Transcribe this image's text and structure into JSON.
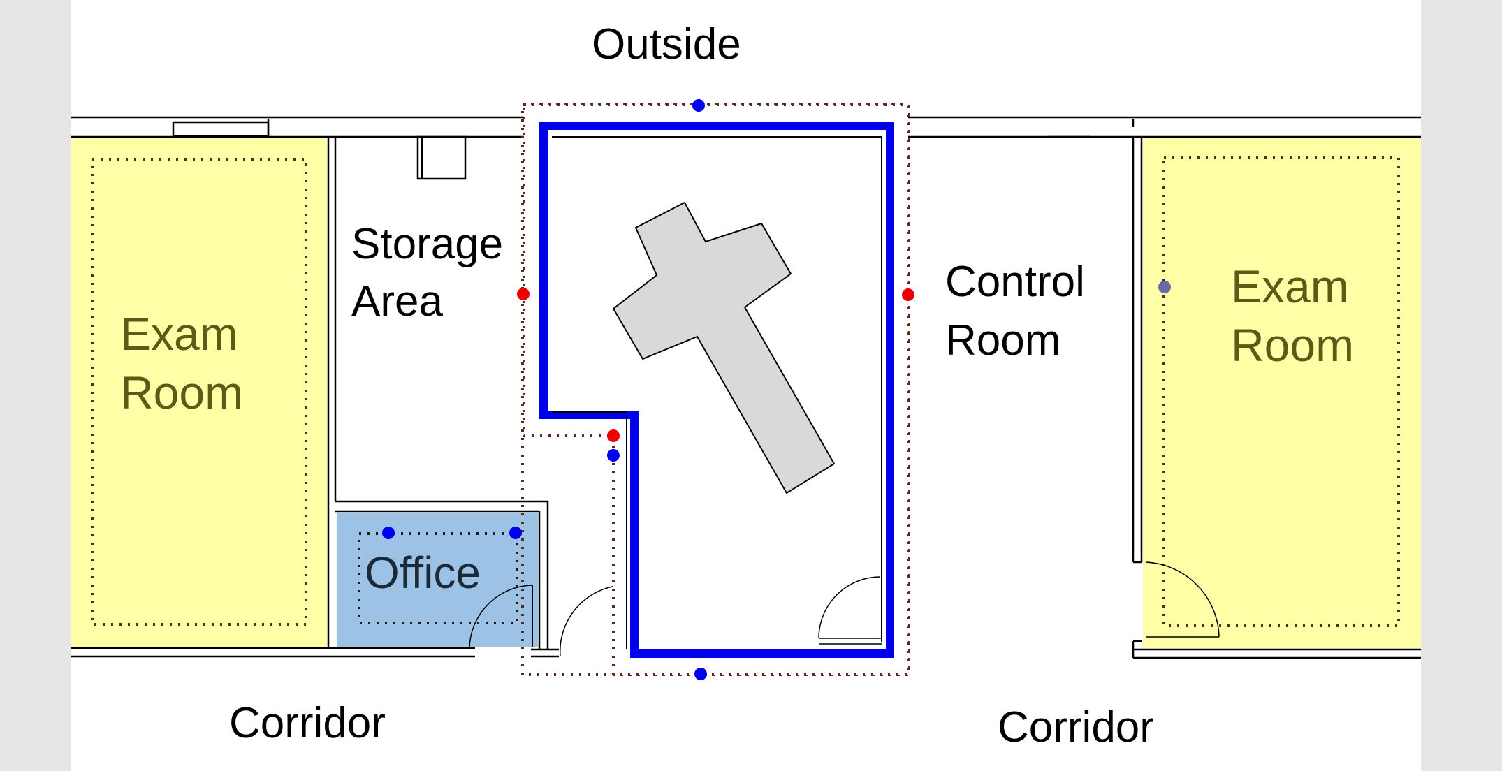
{
  "labels": {
    "outside": "Outside",
    "storage_line1": "Storage",
    "storage_line2": "Area",
    "control_line1": "Control",
    "control_line2": "Room",
    "exam_left_line1": "Exam",
    "exam_left_line2": "Room",
    "exam_right_line1": "Exam",
    "exam_right_line2": "Room",
    "office": "Office",
    "corridor_left": "Corridor",
    "corridor_right": "Corridor"
  },
  "colors": {
    "page_background": "#e6e6e6",
    "sheet": "#ffffff",
    "exam_room_fill": "#ffffa8",
    "exam_room_text": "#5c5a16",
    "office_fill": "#9cc3e6",
    "office_text": "#1a2a3a",
    "shielded_room_outline": "#0000ee",
    "equipment_fill": "#d9d9d9",
    "marker_blue": "#0000ee",
    "marker_red": "#ee0000",
    "marker_slate": "#6a6aa8",
    "dotted_boundary": "#5a2a1a"
  },
  "markers": {
    "blue_count": 5,
    "red_count": 3,
    "slate_count": 1
  }
}
